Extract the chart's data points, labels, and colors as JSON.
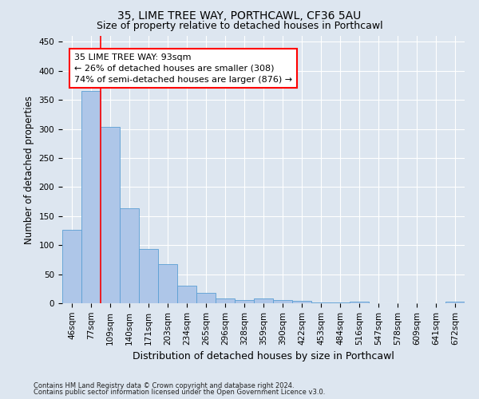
{
  "title1": "35, LIME TREE WAY, PORTHCAWL, CF36 5AU",
  "title2": "Size of property relative to detached houses in Porthcawl",
  "xlabel": "Distribution of detached houses by size in Porthcawl",
  "ylabel": "Number of detached properties",
  "footnote1": "Contains HM Land Registry data © Crown copyright and database right 2024.",
  "footnote2": "Contains public sector information licensed under the Open Government Licence v3.0.",
  "bar_labels": [
    "46sqm",
    "77sqm",
    "109sqm",
    "140sqm",
    "171sqm",
    "203sqm",
    "234sqm",
    "265sqm",
    "296sqm",
    "328sqm",
    "359sqm",
    "390sqm",
    "422sqm",
    "453sqm",
    "484sqm",
    "516sqm",
    "547sqm",
    "578sqm",
    "609sqm",
    "641sqm",
    "672sqm"
  ],
  "bar_values": [
    127,
    365,
    303,
    163,
    93,
    67,
    30,
    18,
    8,
    6,
    8,
    5,
    4,
    2,
    1,
    3,
    0,
    0,
    0,
    0,
    3
  ],
  "bar_color": "#aec6e8",
  "bar_edge_color": "#5a9fd4",
  "annotation_text": "35 LIME TREE WAY: 93sqm\n← 26% of detached houses are smaller (308)\n74% of semi-detached houses are larger (876) →",
  "annotation_box_color": "white",
  "annotation_box_edge": "red",
  "property_line_color": "red",
  "ylim": [
    0,
    460
  ],
  "yticks": [
    0,
    50,
    100,
    150,
    200,
    250,
    300,
    350,
    400,
    450
  ],
  "bg_color": "#dde6f0",
  "plot_bg_color": "#dde6f0",
  "grid_color": "white",
  "title_fontsize": 10,
  "subtitle_fontsize": 9,
  "axis_label_fontsize": 8.5,
  "tick_fontsize": 7.5,
  "annotation_fontsize": 8,
  "footnote_fontsize": 6
}
